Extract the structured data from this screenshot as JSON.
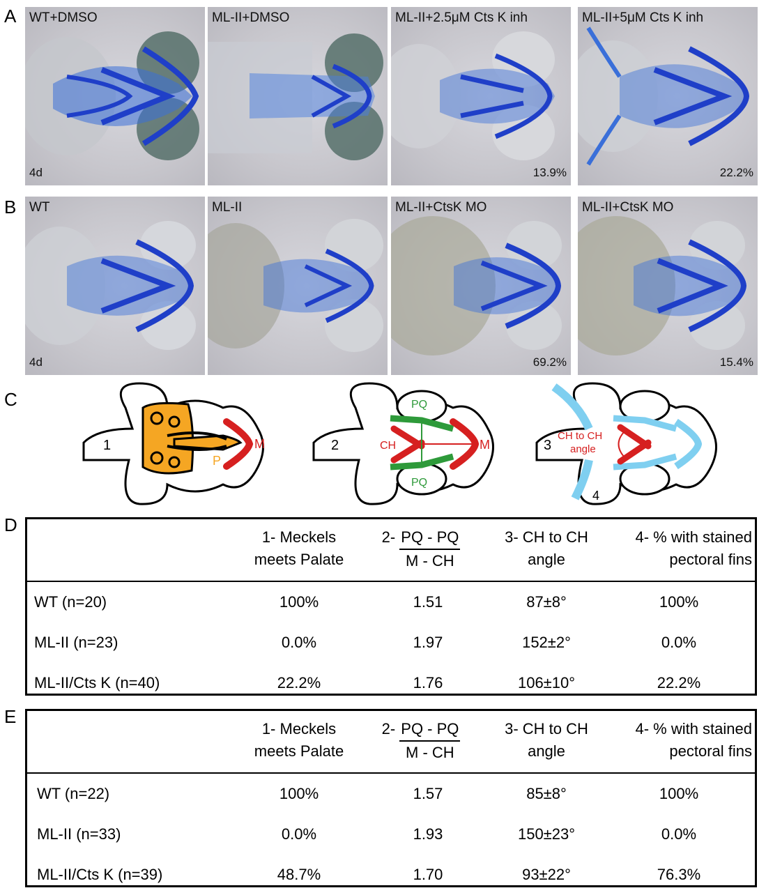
{
  "panel_letters": {
    "a": "A",
    "b": "B",
    "c": "C",
    "d": "D",
    "e": "E"
  },
  "row_a": [
    {
      "label": "WT+DMSO",
      "age": "4d",
      "pct": ""
    },
    {
      "label": "ML-II+DMSO",
      "age": "",
      "pct": ""
    },
    {
      "label": "ML-II+2.5μM Cts K inh",
      "age": "",
      "pct": "13.9%"
    },
    {
      "label": "ML-II+5μM Cts K inh",
      "age": "",
      "pct": "22.2%"
    }
  ],
  "row_b": [
    {
      "label": "WT",
      "age": "4d",
      "pct": ""
    },
    {
      "label": "ML-II",
      "age": "",
      "pct": ""
    },
    {
      "label": "ML-II+CtsK MO",
      "age": "",
      "pct": "69.2%"
    },
    {
      "label": "ML-II+CtsK MO",
      "age": "",
      "pct": "15.4%"
    }
  ],
  "diagrams": {
    "d1": {
      "number": "1",
      "labels": {
        "m": "M",
        "p": "P"
      }
    },
    "d2": {
      "number": "2",
      "labels": {
        "pq_top": "PQ",
        "pq_bottom": "PQ",
        "ch": "CH",
        "m": "M"
      }
    },
    "d3": {
      "number": "3",
      "labels": {
        "angle_line1": "CH to CH",
        "angle_line2": "angle",
        "fin": "4"
      }
    }
  },
  "colors": {
    "cartilage_blue": "#1f4fd6",
    "orange": "#f5a623",
    "red": "#d62020",
    "green": "#2e9a3a",
    "light_blue": "#7fcff0"
  },
  "table_headers": {
    "col1_line1": "1- Meckels",
    "col1_line2": "meets Palate",
    "col2_prefix": "2-",
    "col2_num": "PQ - PQ",
    "col2_den": "M - CH",
    "col3_line1": "3- CH to CH",
    "col3_line2": "angle",
    "col4_line1": "4- % with stained",
    "col4_line2": "pectoral fins"
  },
  "table_d": [
    {
      "label": "WT (n=20)",
      "c1": "100%",
      "c2": "1.51",
      "c3": "87±8°",
      "c4": "100%"
    },
    {
      "label": "ML-II (n=23)",
      "c1": "0.0%",
      "c2": "1.97",
      "c3": "152±2°",
      "c4": "0.0%"
    },
    {
      "label": "ML-II/Cts K (n=40)",
      "c1": "22.2%",
      "c2": "1.76",
      "c3": "106±10°",
      "c4": "22.2%"
    }
  ],
  "table_e": [
    {
      "label": "WT (n=22)",
      "c1": "100%",
      "c2": "1.57",
      "c3": "85±8°",
      "c4": "100%"
    },
    {
      "label": "ML-II (n=33)",
      "c1": "0.0%",
      "c2": "1.93",
      "c3": "150±23°",
      "c4": "0.0%"
    },
    {
      "label": "ML-II/Cts K (n=39)",
      "c1": "48.7%",
      "c2": "1.70",
      "c3": "93±22°",
      "c4": "76.3%"
    }
  ]
}
